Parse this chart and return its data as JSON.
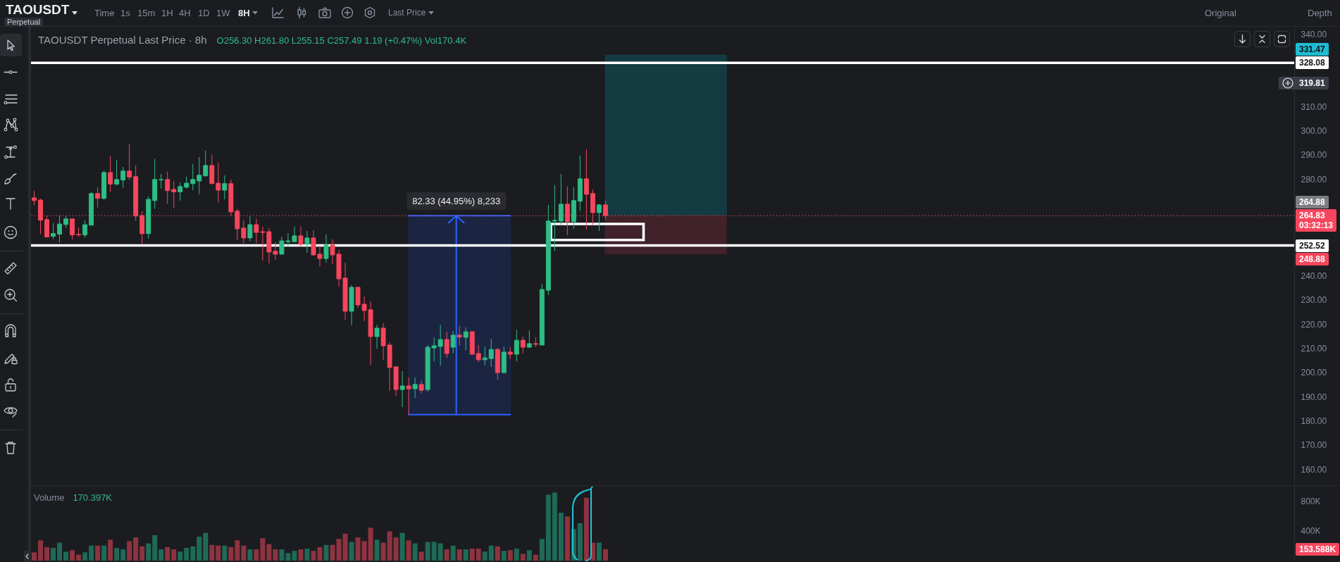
{
  "chart_data": [
    {
      "type": "other",
      "annotations": [
        "TAOUSDT",
        "Perpetual",
        "Time",
        "1s",
        "15m",
        "1H",
        "4H",
        "1D",
        "1W",
        "8H",
        "Last Price",
        "Original",
        "Depth"
      ]
    },
    {
      "type": "candlestick",
      "title": "TAOUSDT Perpetual Last Price · 8h",
      "annotations": [
        "O256.30 H261.80 L255.15 C257.49 1.19 (+0.47%) Vol170.4K",
        "331.47",
        "319.81",
        "264.88",
        "248.88"
      ],
      "categories": [
        null,
        null,
        null,
        null,
        null,
        null,
        null,
        null,
        null,
        null,
        null,
        null,
        null,
        null,
        null,
        null,
        null,
        null,
        null,
        null,
        null,
        null,
        null,
        null,
        null,
        null,
        null,
        null,
        null,
        null,
        null,
        null,
        null,
        null,
        null,
        null,
        null,
        null,
        null,
        null,
        null,
        null,
        null,
        null,
        null,
        null,
        null,
        null,
        null,
        null,
        null,
        null,
        null,
        null,
        null,
        null,
        null,
        null,
        null,
        null,
        null,
        null,
        null,
        null,
        null,
        null,
        null,
        null,
        null,
        null,
        null,
        null,
        null,
        null,
        null,
        null,
        null,
        null,
        null,
        null,
        null,
        null,
        null,
        null,
        null,
        null,
        null,
        null,
        null,
        null,
        null,
        null,
        null,
        null,
        null,
        null,
        null,
        null,
        null,
        null,
        null,
        null,
        null,
        null,
        null,
        null,
        null,
        null,
        null,
        null,
        null,
        null,
        null,
        null,
        null,
        null,
        null,
        null,
        null,
        null,
        null,
        null,
        null,
        null,
        null,
        null,
        null,
        null,
        null,
        null,
        null,
        null,
        null,
        null,
        null,
        null,
        null,
        null,
        null,
        null,
        null,
        null,
        null,
        null,
        null,
        null,
        null,
        null,
        null,
        null,
        null,
        null,
        null,
        null,
        null,
        null,
        null,
        null,
        null,
        null,
        null,
        null,
        null,
        null,
        null,
        null,
        null,
        null,
        null,
        null,
        null,
        null,
        null,
        null,
        null,
        null,
        null,
        null,
        null,
        null,
        null,
        null,
        null,
        null,
        null,
        null,
        null,
        null,
        null,
        null,
        null,
        null,
        null,
        null,
        null,
        null,
        null,
        null,
        null
      ],
      "ohlc": [
        [
          272.2,
          275.1,
          269.1,
          271.1
        ],
        [
          271.3,
          271.9,
          257.2,
          263.0
        ],
        [
          263.2,
          264.7,
          256.0,
          256.0
        ],
        [
          256.3,
          261.8,
          255.15,
          257.49
        ],
        [
          257.2,
          264.9,
          253.7,
          261.4
        ],
        [
          261.2,
          264.7,
          259.8,
          263.5
        ],
        [
          263.5,
          263.5,
          255.1,
          256.9
        ],
        [
          257.1,
          260.0,
          256.0,
          256.9
        ],
        [
          256.9,
          262.9,
          255.7,
          261.1
        ],
        [
          260.9,
          274.6,
          260.9,
          274.0
        ],
        [
          274.0,
          276.6,
          268.2,
          272.0
        ],
        [
          272.0,
          283.5,
          271.4,
          282.7
        ],
        [
          282.7,
          289.4,
          274.7,
          277.9
        ],
        [
          277.9,
          288.0,
          277.3,
          279.8
        ],
        [
          279.6,
          285.0,
          276.4,
          283.3
        ],
        [
          283.3,
          294.4,
          279.6,
          280.8
        ],
        [
          281.0,
          285.6,
          262.7,
          264.7
        ],
        [
          264.9,
          266.7,
          252.8,
          257.4
        ],
        [
          257.4,
          272.8,
          255.4,
          271.6
        ],
        [
          271.1,
          288.3,
          267.7,
          279.8
        ],
        [
          279.6,
          282.1,
          276.1,
          279.8
        ],
        [
          279.8,
          283.0,
          269.7,
          275.2
        ],
        [
          275.7,
          279.2,
          268.1,
          274.7
        ],
        [
          274.7,
          278.6,
          271.1,
          276.9
        ],
        [
          276.6,
          281.0,
          276.1,
          278.3
        ],
        [
          278.1,
          286.2,
          275.4,
          279.8
        ],
        [
          279.2,
          289.1,
          273.7,
          281.6
        ],
        [
          281.3,
          291.8,
          281.0,
          285.6
        ],
        [
          285.6,
          290.0,
          277.8,
          278.1
        ],
        [
          278.3,
          286.8,
          270.2,
          275.4
        ],
        [
          275.4,
          281.5,
          271.6,
          278.1
        ],
        [
          278.1,
          279.8,
          264.9,
          266.4
        ],
        [
          266.7,
          267.6,
          254.7,
          259.4
        ],
        [
          259.7,
          262.9,
          253.3,
          255.6
        ],
        [
          255.6,
          264.6,
          254.2,
          261.1
        ],
        [
          261.1,
          263.5,
          253.4,
          257.9
        ],
        [
          258.2,
          260.3,
          246.3,
          257.9
        ],
        [
          258.2,
          259.7,
          245.1,
          249.8
        ],
        [
          250.1,
          253.9,
          246.6,
          248.9
        ],
        [
          248.9,
          256.2,
          248.9,
          254.4
        ],
        [
          254.1,
          257.6,
          252.1,
          254.4
        ],
        [
          254.1,
          260.3,
          253.9,
          256.5
        ],
        [
          256.5,
          260.3,
          252.1,
          253.0
        ],
        [
          253.0,
          258.5,
          249.5,
          255.6
        ],
        [
          255.6,
          258.8,
          248.3,
          248.6
        ],
        [
          248.9,
          252.4,
          243.9,
          247.1
        ],
        [
          247.1,
          257.1,
          245.4,
          252.7
        ],
        [
          252.7,
          255.0,
          244.8,
          248.6
        ],
        [
          248.9,
          250.6,
          235.5,
          238.7
        ],
        [
          239.0,
          245.4,
          221.8,
          225.3
        ],
        [
          225.3,
          236.1,
          219.5,
          235.2
        ],
        [
          235.2,
          235.2,
          226.7,
          227.9
        ],
        [
          228.2,
          231.4,
          221.2,
          225.6
        ],
        [
          225.9,
          229.4,
          203.1,
          214.8
        ],
        [
          214.8,
          219.7,
          209.8,
          218.3
        ],
        [
          218.3,
          220.3,
          205.2,
          211.0
        ],
        [
          211.3,
          212.5,
          192.3,
          202.0
        ],
        [
          202.3,
          202.5,
          190.3,
          192.9
        ],
        [
          192.9,
          200.5,
          185.6,
          194.4
        ],
        [
          194.4,
          197.9,
          182.5,
          193.2
        ],
        [
          193.2,
          197.9,
          189.4,
          195.0
        ],
        [
          195.0,
          196.7,
          191.2,
          192.6
        ],
        [
          192.9,
          211.3,
          192.0,
          210.4
        ],
        [
          210.1,
          214.5,
          204.6,
          211.0
        ],
        [
          210.7,
          219.7,
          202.8,
          213.6
        ],
        [
          213.6,
          216.8,
          206.0,
          207.8
        ],
        [
          210.4,
          217.1,
          207.8,
          215.4
        ],
        [
          215.4,
          219.2,
          211.0,
          214.6
        ],
        [
          214.5,
          218.6,
          209.2,
          216.8
        ],
        [
          216.8,
          217.1,
          207.5,
          207.5
        ],
        [
          207.8,
          211.3,
          204.3,
          205.2
        ],
        [
          205.2,
          210.7,
          202.8,
          206.0
        ],
        [
          205.7,
          213.9,
          202.3,
          209.5
        ],
        [
          209.5,
          210.1,
          197.0,
          199.9
        ],
        [
          199.9,
          210.7,
          199.9,
          208.4
        ],
        [
          208.4,
          210.4,
          205.5,
          207.5
        ],
        [
          207.5,
          217.7,
          204.6,
          213.3
        ],
        [
          213.3,
          214.8,
          207.8,
          210.4
        ],
        [
          210.4,
          217.4,
          210.1,
          211.9
        ],
        [
          211.9,
          214.5,
          210.4,
          211.6
        ],
        [
          211.3,
          236.7,
          211.3,
          234.3
        ],
        [
          234.0,
          269.3,
          232.0,
          262.6
        ],
        [
          262.6,
          277.5,
          250.1,
          262.9
        ],
        [
          262.6,
          282.1,
          261.1,
          269.6
        ],
        [
          269.6,
          276.9,
          256.8,
          262.3
        ],
        [
          262.3,
          276.6,
          259.4,
          271.1
        ],
        [
          270.8,
          289.7,
          266.7,
          280.1
        ],
        [
          280.1,
          292.3,
          259.1,
          273.7
        ],
        [
          274.0,
          275.7,
          261.1,
          266.1
        ],
        [
          266.1,
          269.6,
          258.5,
          269.3
        ],
        [
          269.3,
          271.1,
          263.3,
          264.83
        ],
        null,
        null,
        null,
        null,
        null,
        null,
        null,
        null,
        null,
        null,
        null,
        null,
        null,
        null,
        null,
        null,
        null,
        null,
        null,
        null,
        null,
        null,
        null,
        null,
        null,
        null,
        null,
        null,
        null,
        null,
        null,
        null,
        null,
        null,
        null,
        null,
        null,
        null,
        null,
        null,
        null,
        null,
        null,
        null,
        null,
        null,
        null,
        null,
        null,
        null,
        null,
        null,
        null,
        null,
        null,
        null,
        null,
        null,
        null,
        null,
        null,
        null,
        null,
        null,
        null,
        null,
        null,
        null,
        null,
        null,
        null,
        null,
        null,
        null,
        null,
        null,
        null,
        null,
        null,
        null,
        null,
        null,
        null,
        null,
        null,
        null,
        null,
        null,
        null,
        null,
        null,
        null,
        null,
        null,
        null,
        null,
        null,
        null,
        null,
        null,
        null,
        null,
        null,
        null,
        null,
        null,
        null,
        null
      ],
      "colors": [
        "#f6465d",
        "#f6465d",
        "#f6465d",
        "#2ebd85",
        "#2ebd85",
        "#2ebd85",
        "#f6465d",
        "#f6465d",
        "#2ebd85",
        "#2ebd85",
        "#f6465d",
        "#2ebd85",
        "#f6465d",
        "#2ebd85",
        "#2ebd85",
        "#f6465d",
        "#f6465d",
        "#f6465d",
        "#2ebd85",
        "#2ebd85",
        "#2ebd85",
        "#f6465d",
        "#f6465d",
        "#2ebd85",
        "#2ebd85",
        "#2ebd85",
        "#2ebd85",
        "#2ebd85",
        "#f6465d",
        "#f6465d",
        "#2ebd85",
        "#f6465d",
        "#f6465d",
        "#f6465d",
        "#2ebd85",
        "#f6465d",
        "#f6465d",
        "#f6465d",
        "#f6465d",
        "#2ebd85",
        "#2ebd85",
        "#2ebd85",
        "#f6465d",
        "#2ebd85",
        "#f6465d",
        "#f6465d",
        "#2ebd85",
        "#f6465d",
        "#f6465d",
        "#f6465d",
        "#2ebd85",
        "#f6465d",
        "#f6465d",
        "#f6465d",
        "#2ebd85",
        "#f6465d",
        "#f6465d",
        "#f6465d",
        "#2ebd85",
        "#f6465d",
        "#2ebd85",
        "#f6465d",
        "#2ebd85",
        "#2ebd85",
        "#2ebd85",
        "#f6465d",
        "#2ebd85",
        "#f6465d",
        "#2ebd85",
        "#f6465d",
        "#f6465d",
        "#2ebd85",
        "#2ebd85",
        "#f6465d",
        "#2ebd85",
        "#f6465d",
        "#2ebd85",
        "#f6465d",
        "#2ebd85",
        "#f6465d",
        "#2ebd85",
        "#2ebd85",
        "#2ebd85",
        "#2ebd85",
        "#f6465d",
        "#2ebd85",
        "#2ebd85",
        "#f6465d",
        "#f6465d",
        "#2ebd85",
        "#f6465d",
        null,
        null,
        null,
        null,
        null,
        null,
        null,
        null,
        null,
        null,
        null,
        null,
        null,
        null,
        null,
        null,
        null,
        null,
        null,
        null,
        null,
        null,
        null,
        null,
        null,
        null,
        null,
        null,
        null,
        null,
        null,
        null,
        null,
        null,
        null,
        null,
        null,
        null,
        null,
        null,
        null,
        null,
        null,
        null,
        null,
        null,
        null,
        null,
        null,
        null,
        null,
        null,
        null,
        null,
        null,
        null,
        null,
        null,
        null,
        null,
        null,
        null,
        null,
        null,
        null,
        null,
        null,
        null,
        null,
        null,
        null,
        null,
        null,
        null,
        null,
        null,
        null,
        null,
        null,
        null,
        null,
        null,
        null,
        null,
        null,
        null,
        null,
        null,
        null,
        null,
        null,
        null,
        null,
        null,
        null,
        null,
        null,
        null,
        null,
        null,
        null,
        null,
        null,
        null,
        null,
        null,
        null,
        null
      ],
      "ylim": [
        153.3,
        343.0
      ],
      "yticks": [
        {
          "value": 160,
          "label": "160.00"
        },
        {
          "value": 170,
          "label": "170.00"
        },
        {
          "value": 180,
          "label": "180.00"
        },
        {
          "value": 190,
          "label": "190.00"
        },
        {
          "value": 200,
          "label": "200.00"
        },
        {
          "value": 210,
          "label": "210.00"
        },
        {
          "value": 220,
          "label": "220.00"
        },
        {
          "value": 230,
          "label": "230.00"
        },
        {
          "value": 240,
          "label": "240.00"
        },
        {
          "value": 280,
          "label": "280.00"
        },
        {
          "value": 290,
          "label": "290.00"
        },
        {
          "value": 300,
          "label": "300.00"
        },
        {
          "value": 310,
          "label": "310.00"
        },
        {
          "value": 340,
          "label": "340.00"
        }
      ],
      "ref_lines": [
        {
          "axis": "y",
          "value": 328.08,
          "label": "328.08",
          "color": "#ffffff"
        },
        {
          "axis": "y",
          "value": 252.52,
          "label": "252.52",
          "color": "#ffffff"
        },
        {
          "axis": "y",
          "value": 264.83,
          "label": "264.83\n03:32:13",
          "color": "#f6465d",
          "line_style": "dotted"
        }
      ],
      "bands": [
        {
          "axis": "y",
          "from": 182.5,
          "to": 264.83,
          "label": "82.33 (44.95%) 8,233",
          "color": "#1b2542"
        },
        {
          "axis": "y",
          "from": 264.88,
          "to": 331.47,
          "color": "#143b41"
        },
        {
          "axis": "y",
          "from": 248.88,
          "to": 264.88,
          "color": "#41212a"
        }
      ],
      "tick_labels": "y"
    },
    {
      "type": "bar",
      "title": "Volume",
      "annotations": [
        "170.397K",
        "153.588K"
      ],
      "categories": [
        null,
        null,
        null,
        null,
        null,
        null,
        null,
        null,
        null,
        null,
        null,
        null,
        null,
        null,
        null,
        null,
        null,
        null,
        null,
        null,
        null,
        null,
        null,
        null,
        null,
        null,
        null,
        null,
        null,
        null,
        null,
        null,
        null,
        null,
        null,
        null,
        null,
        null,
        null,
        null,
        null,
        null,
        null,
        null,
        null,
        null,
        null,
        null,
        null,
        null,
        null,
        null,
        null,
        null,
        null,
        null,
        null,
        null,
        null,
        null,
        null,
        null,
        null,
        null,
        null,
        null,
        null,
        null,
        null,
        null,
        null,
        null,
        null,
        null,
        null,
        null,
        null,
        null,
        null,
        null,
        null,
        null,
        null,
        null,
        null,
        null,
        null,
        null,
        null,
        null,
        null,
        null,
        null,
        null,
        null,
        null,
        null,
        null,
        null,
        null,
        null,
        null,
        null,
        null,
        null,
        null,
        null,
        null,
        null,
        null,
        null,
        null,
        null,
        null,
        null,
        null,
        null,
        null,
        null,
        null,
        null,
        null,
        null,
        null,
        null,
        null,
        null,
        null,
        null,
        null,
        null,
        null,
        null,
        null,
        null,
        null,
        null,
        null,
        null,
        null,
        null,
        null,
        null,
        null,
        null,
        null,
        null,
        null,
        null,
        null,
        null,
        null,
        null,
        null,
        null,
        null,
        null,
        null,
        null,
        null,
        null,
        null,
        null,
        null,
        null,
        null,
        null,
        null,
        null,
        null,
        null,
        null,
        null,
        null,
        null,
        null,
        null,
        null,
        null,
        null,
        null,
        null,
        null,
        null,
        null,
        null,
        null,
        null,
        null,
        null,
        null,
        null,
        null,
        null,
        null,
        null,
        null,
        null,
        null
      ],
      "values": [
        110000,
        270000,
        180000,
        170397,
        240000,
        120000,
        140000,
        80000,
        110000,
        200000,
        200000,
        200000,
        280000,
        170000,
        150000,
        260000,
        310000,
        190000,
        230000,
        340000,
        150000,
        180000,
        150000,
        120000,
        170000,
        190000,
        320000,
        370000,
        210000,
        200000,
        200000,
        180000,
        270000,
        200000,
        150000,
        150000,
        300000,
        220000,
        150000,
        150000,
        100000,
        130000,
        150000,
        160000,
        130000,
        180000,
        210000,
        210000,
        290000,
        360000,
        250000,
        310000,
        260000,
        440000,
        280000,
        240000,
        390000,
        310000,
        370000,
        270000,
        230000,
        120000,
        250000,
        250000,
        230000,
        150000,
        200000,
        150000,
        150000,
        160000,
        160000,
        120000,
        200000,
        190000,
        130000,
        140000,
        160000,
        90000,
        140000,
        80000,
        290000,
        880000,
        910000,
        640000,
        590000,
        420000,
        500000,
        840000,
        240000,
        240000,
        153588,
        null,
        null,
        null,
        null,
        null,
        null,
        null,
        null,
        null,
        null,
        null,
        null,
        null,
        null,
        null,
        null,
        null,
        null,
        null,
        null,
        null,
        null,
        null,
        null,
        null,
        null,
        null,
        null,
        null,
        null,
        null,
        null,
        null,
        null,
        null,
        null,
        null,
        null,
        null,
        null,
        null,
        null,
        null,
        null,
        null,
        null,
        null,
        null,
        null,
        null,
        null,
        null,
        null,
        null,
        null,
        null,
        null,
        null,
        null,
        null,
        null,
        null,
        null,
        null,
        null,
        null,
        null,
        null,
        null,
        null,
        null,
        null,
        null,
        null,
        null,
        null,
        null,
        null,
        null,
        null,
        null,
        null,
        null,
        null,
        null,
        null,
        null,
        null,
        null,
        null,
        null,
        null,
        null,
        null,
        null,
        null,
        null,
        null,
        null,
        null,
        null,
        null,
        null,
        null,
        null,
        null,
        null,
        null
      ],
      "colors": [
        "#8e3340",
        "#8e3340",
        "#8e3340",
        "#1e6a56",
        "#1e6a56",
        "#1e6a56",
        "#8e3340",
        "#8e3340",
        "#1e6a56",
        "#1e6a56",
        "#8e3340",
        "#1e6a56",
        "#8e3340",
        "#1e6a56",
        "#1e6a56",
        "#8e3340",
        "#8e3340",
        "#8e3340",
        "#1e6a56",
        "#1e6a56",
        "#1e6a56",
        "#8e3340",
        "#8e3340",
        "#1e6a56",
        "#1e6a56",
        "#1e6a56",
        "#1e6a56",
        "#1e6a56",
        "#8e3340",
        "#8e3340",
        "#1e6a56",
        "#8e3340",
        "#8e3340",
        "#8e3340",
        "#1e6a56",
        "#8e3340",
        "#8e3340",
        "#8e3340",
        "#8e3340",
        "#1e6a56",
        "#1e6a56",
        "#1e6a56",
        "#8e3340",
        "#1e6a56",
        "#8e3340",
        "#8e3340",
        "#1e6a56",
        "#8e3340",
        "#8e3340",
        "#8e3340",
        "#1e6a56",
        "#8e3340",
        "#8e3340",
        "#8e3340",
        "#1e6a56",
        "#8e3340",
        "#8e3340",
        "#8e3340",
        "#1e6a56",
        "#8e3340",
        "#1e6a56",
        "#8e3340",
        "#1e6a56",
        "#1e6a56",
        "#1e6a56",
        "#8e3340",
        "#1e6a56",
        "#8e3340",
        "#1e6a56",
        "#8e3340",
        "#8e3340",
        "#1e6a56",
        "#1e6a56",
        "#8e3340",
        "#1e6a56",
        "#8e3340",
        "#1e6a56",
        "#8e3340",
        "#1e6a56",
        "#8e3340",
        "#1e6a56",
        "#1e6a56",
        "#1e6a56",
        "#1e6a56",
        "#8e3340",
        "#1e6a56",
        "#1e6a56",
        "#8e3340",
        "#8e3340",
        "#1e6a56",
        "#8e3340",
        null,
        null,
        null,
        null,
        null,
        null,
        null,
        null,
        null,
        null,
        null,
        null,
        null,
        null,
        null,
        null,
        null,
        null,
        null,
        null,
        null,
        null,
        null,
        null,
        null,
        null,
        null,
        null,
        null,
        null,
        null,
        null,
        null,
        null,
        null,
        null,
        null,
        null,
        null,
        null,
        null,
        null,
        null,
        null,
        null,
        null,
        null,
        null,
        null,
        null,
        null,
        null,
        null,
        null,
        null,
        null,
        null,
        null,
        null,
        null,
        null,
        null,
        null,
        null,
        null,
        null,
        null,
        null,
        null,
        null,
        null,
        null,
        null,
        null,
        null,
        null,
        null,
        null,
        null,
        null,
        null,
        null,
        null,
        null,
        null,
        null,
        null,
        null,
        null,
        null,
        null,
        null,
        null,
        null,
        null,
        null,
        null,
        null,
        null,
        null,
        null,
        null,
        null,
        null,
        null,
        null,
        null,
        null
      ],
      "ylim": [
        0,
        998000
      ],
      "yticks": [
        {
          "value": 400000,
          "label": "400K"
        },
        {
          "value": 800000,
          "label": "800K"
        }
      ],
      "tick_labels": "y"
    }
  ]
}
